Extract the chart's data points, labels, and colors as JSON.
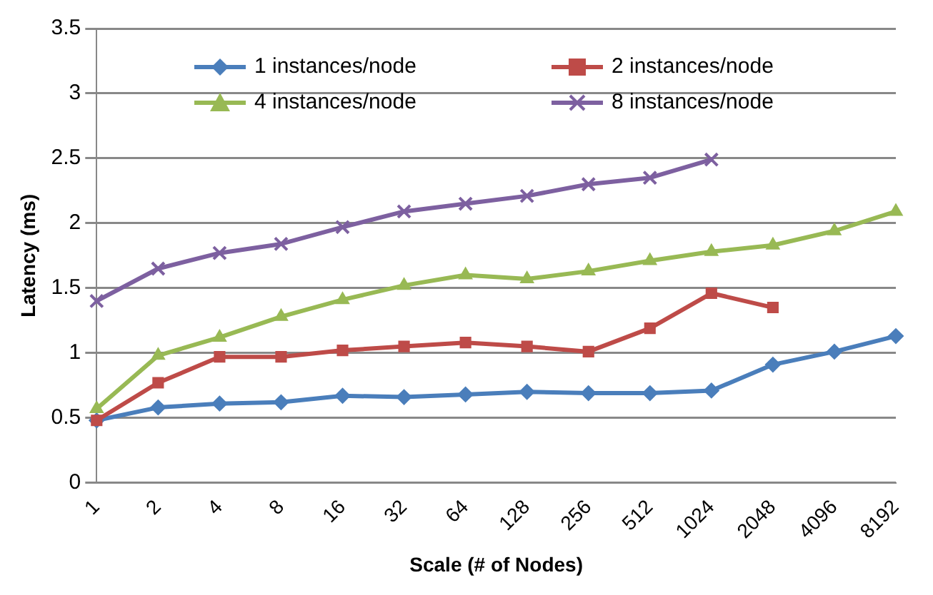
{
  "chart_data": {
    "type": "line",
    "xlabel": "Scale (# of Nodes)",
    "ylabel": "Latency (ms)",
    "categories": [
      "1",
      "2",
      "4",
      "8",
      "16",
      "32",
      "64",
      "128",
      "256",
      "512",
      "1024",
      "2048",
      "4096",
      "8192"
    ],
    "series": [
      {
        "name": "1 instances/node",
        "color": "#4a7ebb",
        "marker": "diamond",
        "values": [
          0.48,
          0.58,
          0.61,
          0.62,
          0.67,
          0.66,
          0.68,
          0.7,
          0.69,
          0.69,
          0.71,
          0.91,
          1.01,
          1.13
        ]
      },
      {
        "name": "2 instances/node",
        "color": "#be4b48",
        "marker": "square",
        "values": [
          0.48,
          0.77,
          0.97,
          0.97,
          1.02,
          1.05,
          1.08,
          1.05,
          1.01,
          1.19,
          1.46,
          1.35,
          null,
          null
        ]
      },
      {
        "name": "4 instances/node",
        "color": "#98b954",
        "marker": "triangle",
        "values": [
          0.57,
          0.98,
          1.12,
          1.28,
          1.41,
          1.52,
          1.6,
          1.57,
          1.63,
          1.71,
          1.78,
          1.83,
          1.94,
          2.09
        ]
      },
      {
        "name": "8 instances/node",
        "color": "#7d60a0",
        "marker": "cross",
        "values": [
          1.4,
          1.65,
          1.77,
          1.84,
          1.97,
          2.09,
          2.15,
          2.21,
          2.3,
          2.35,
          2.49,
          null,
          null,
          null
        ]
      }
    ],
    "ylim": [
      0,
      3.5
    ],
    "yticks": [
      0,
      0.5,
      1,
      1.5,
      2,
      2.5,
      3,
      3.5
    ],
    "grid": "y",
    "legend": "top",
    "line_style": "solid"
  }
}
